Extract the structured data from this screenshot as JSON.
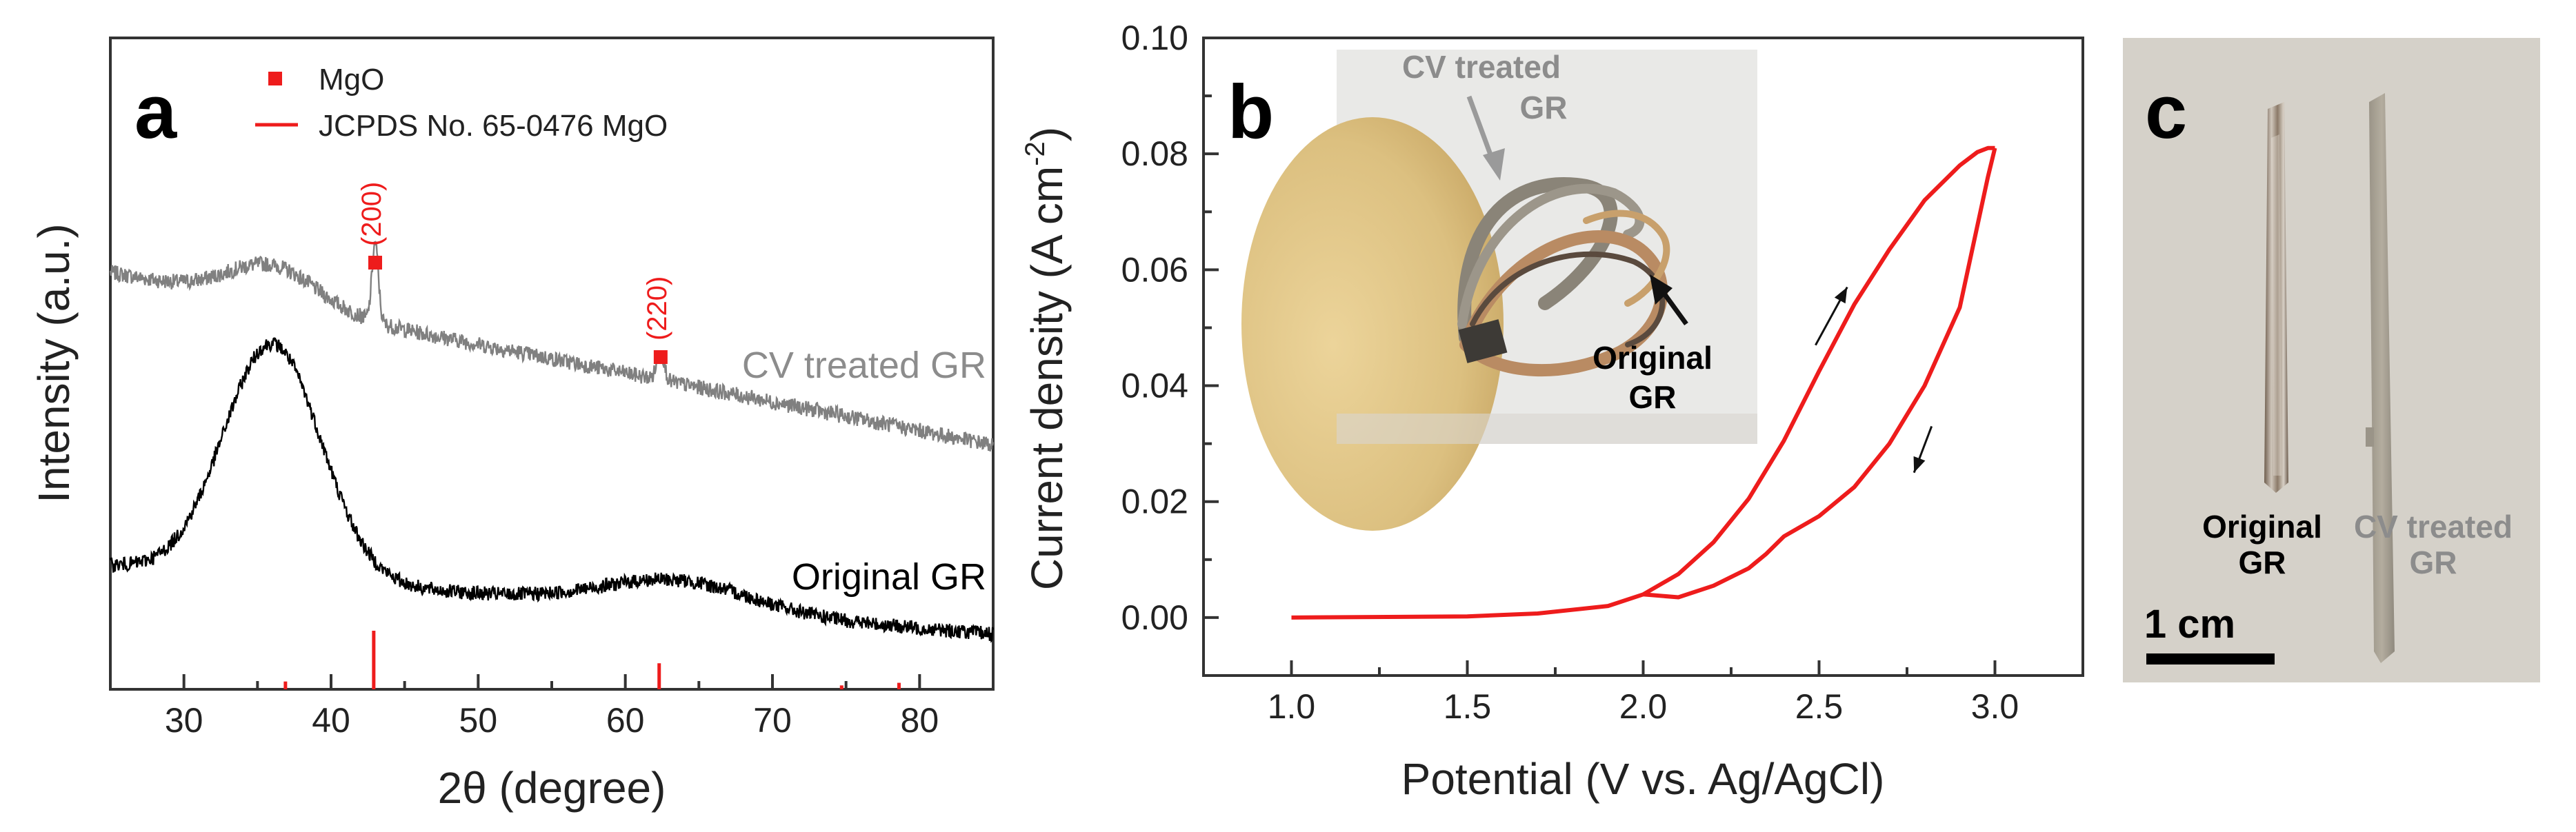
{
  "figure": {
    "panels": {
      "a": {
        "letter": "a"
      },
      "b": {
        "letter": "b"
      },
      "c": {
        "letter": "c"
      }
    }
  },
  "colors": {
    "red": "#ee1c1c",
    "black": "#000000",
    "gray_trace": "#808080",
    "gray_label": "#8c8c8c",
    "axis": "#333333"
  },
  "chart_data": [
    {
      "id": "a",
      "type": "line",
      "title": "",
      "xlabel": "2θ (degree)",
      "ylabel": "Intensity (a.u.)",
      "xlim": [
        25,
        85
      ],
      "ylim": [
        0,
        1
      ],
      "xticks": [
        30,
        40,
        50,
        60,
        70,
        80
      ],
      "y_ticks_shown": false,
      "legend": {
        "position": "top-left",
        "entries": [
          {
            "label": "MgO",
            "marker": "square",
            "color": "#ee1c1c"
          },
          {
            "label": "JCPDS No. 65-0476 MgO",
            "marker": "line",
            "color": "#ee1c1c"
          }
        ]
      },
      "series": [
        {
          "name": "CV treated GR",
          "color": "#808080",
          "baseline_start": 0.64,
          "baseline_end": 0.375,
          "broad_peaks": [
            {
              "center": 36.0,
              "height": 0.06,
              "width": 3.0
            }
          ],
          "sharp_peaks": [
            {
              "center": 43.0,
              "height": 0.12,
              "width": 0.22
            },
            {
              "center": 62.4,
              "height": 0.045,
              "width": 0.25
            }
          ],
          "noise": 0.012,
          "label": "CV treated GR"
        },
        {
          "name": "Original GR",
          "color": "#000000",
          "baseline_start": 0.19,
          "baseline_end": 0.085,
          "broad_peaks": [
            {
              "center": 36.0,
              "height": 0.36,
              "width": 3.3
            },
            {
              "center": 63.5,
              "height": 0.045,
              "width": 5.0
            }
          ],
          "sharp_peaks": [],
          "noise": 0.011,
          "label": "Original GR"
        }
      ],
      "reference_lines": {
        "name": "JCPDS No. 65-0476 MgO",
        "positions": [
          36.9,
          42.9,
          62.3,
          74.7,
          78.6
        ],
        "heights": [
          0.012,
          0.09,
          0.04,
          0.006,
          0.01
        ]
      },
      "peak_annotations": [
        {
          "label": "(200)",
          "position": 43.0,
          "marker_level": 0.655
        },
        {
          "label": "(220)",
          "position": 62.4,
          "marker_level": 0.51
        }
      ]
    },
    {
      "id": "b",
      "type": "line",
      "title": "",
      "xlabel": "Potential (V vs. Ag/AgCl)",
      "ylabel": "Current density (A cm-2)",
      "ylabel_main": "Current density (A cm",
      "ylabel_sup": "-2",
      "ylabel_close": ")",
      "xlim": [
        0.75,
        3.25
      ],
      "ylim": [
        -0.01,
        0.1
      ],
      "xticks": [
        1.0,
        1.5,
        2.0,
        2.5,
        3.0
      ],
      "yticks": [
        0.0,
        0.02,
        0.04,
        0.06,
        0.08,
        0.1
      ],
      "xtick_labels": [
        "1.0",
        "1.5",
        "2.0",
        "2.5",
        "3.0"
      ],
      "ytick_labels": [
        "0.00",
        "0.02",
        "0.04",
        "0.06",
        "0.08",
        "0.10"
      ],
      "series": [
        {
          "name": "CV forward scan",
          "color": "#ee1c1c",
          "x": [
            1.0,
            1.5,
            1.7,
            1.9,
            2.0,
            2.1,
            2.2,
            2.3,
            2.4,
            2.5,
            2.6,
            2.7,
            2.8,
            2.9,
            2.95,
            2.98,
            3.0
          ],
          "y": [
            0.0,
            0.0002,
            0.0007,
            0.002,
            0.004,
            0.0075,
            0.013,
            0.0205,
            0.0305,
            0.0425,
            0.054,
            0.0635,
            0.072,
            0.078,
            0.0803,
            0.081,
            0.081
          ]
        },
        {
          "name": "CV reverse scan",
          "color": "#ee1c1c",
          "x": [
            3.0,
            2.98,
            2.9,
            2.8,
            2.7,
            2.6,
            2.5,
            2.4,
            2.35,
            2.3,
            2.2,
            2.1,
            2.0
          ],
          "y": [
            0.081,
            0.076,
            0.0535,
            0.04,
            0.03,
            0.0225,
            0.0175,
            0.014,
            0.011,
            0.0085,
            0.0055,
            0.0035,
            0.004
          ]
        }
      ],
      "arrows": [
        {
          "direction": "up",
          "from": [
            2.49,
            0.047
          ],
          "to": [
            2.58,
            0.057
          ]
        },
        {
          "direction": "down",
          "from": [
            2.82,
            0.033
          ],
          "to": [
            2.77,
            0.025
          ]
        }
      ],
      "inset": {
        "labels": [
          {
            "text": "CV treated",
            "color": "#8c8c8c"
          },
          {
            "text": "GR",
            "color": "#8c8c8c"
          },
          {
            "text": "Original",
            "color": "#000000"
          },
          {
            "text": "GR",
            "color": "#000000"
          }
        ]
      }
    }
  ],
  "photo_c": {
    "labels": {
      "original_line1": "Original",
      "original_line2": "GR",
      "cv_line1": "CV treated",
      "cv_line2": "GR",
      "scale": "1 cm"
    }
  }
}
